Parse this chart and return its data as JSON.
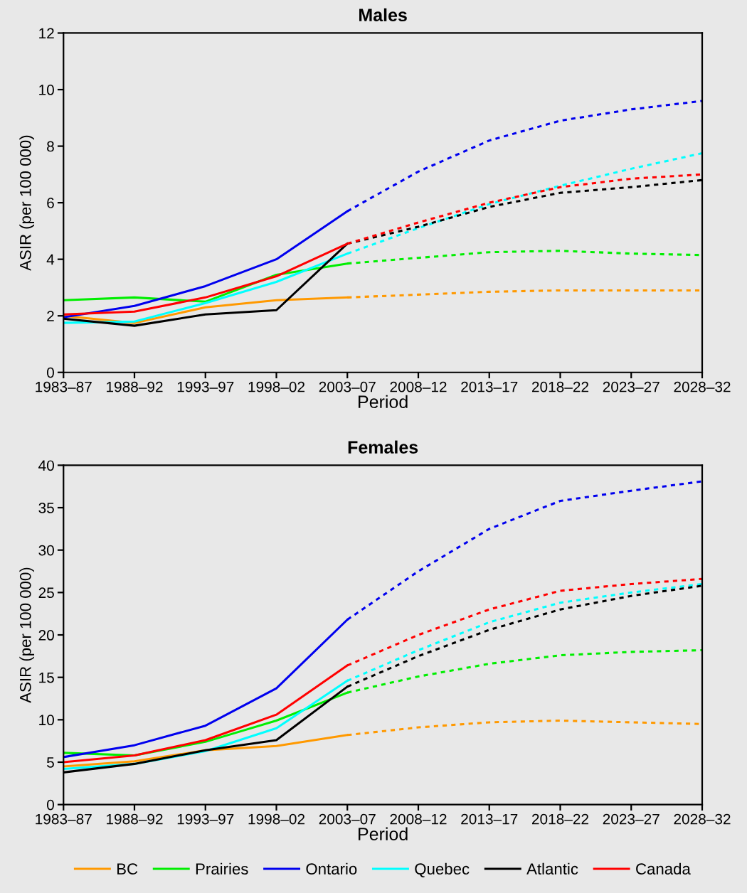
{
  "chart_data": [
    {
      "type": "line",
      "title": "Males",
      "xlabel": "Period",
      "ylabel": "ASIR (per 100 000)",
      "categories": [
        "1983–87",
        "1988–92",
        "1993–97",
        "1998–02",
        "2003–07",
        "2008–12",
        "2013–17",
        "2018–22",
        "2023–27",
        "2028–32"
      ],
      "ylim": [
        0,
        12
      ],
      "yticks": [
        0,
        2,
        4,
        6,
        8,
        10,
        12
      ],
      "grid": false,
      "legend": false,
      "series": [
        {
          "color": "#ff9900",
          "line_style": "solid",
          "values": [
            2.0,
            1.75,
            2.3,
            2.55,
            2.65,
            null,
            null,
            null,
            null,
            null
          ]
        },
        {
          "color": "#00ee00",
          "line_style": "solid",
          "values": [
            2.55,
            2.65,
            2.5,
            3.45,
            3.85,
            null,
            null,
            null,
            null,
            null
          ]
        },
        {
          "color": "#0000ee",
          "line_style": "solid",
          "values": [
            1.95,
            2.35,
            3.05,
            4.0,
            5.7,
            null,
            null,
            null,
            null,
            null
          ]
        },
        {
          "color": "#00ffff",
          "line_style": "solid",
          "values": [
            1.75,
            1.8,
            2.45,
            3.2,
            4.2,
            null,
            null,
            null,
            null,
            null
          ]
        },
        {
          "color": "#000000",
          "line_style": "solid",
          "values": [
            1.9,
            1.65,
            2.05,
            2.2,
            4.55,
            null,
            null,
            null,
            null,
            null
          ]
        },
        {
          "color": "#ff0000",
          "line_style": "solid",
          "values": [
            2.05,
            2.15,
            2.65,
            3.4,
            4.55,
            null,
            null,
            null,
            null,
            null
          ]
        },
        {
          "color": "#ff9900",
          "line_style": "dashed",
          "values": [
            null,
            null,
            null,
            null,
            2.65,
            2.75,
            2.85,
            2.9,
            2.9,
            2.9
          ]
        },
        {
          "color": "#00ee00",
          "line_style": "dashed",
          "values": [
            null,
            null,
            null,
            null,
            3.85,
            4.05,
            4.25,
            4.3,
            4.2,
            4.15
          ]
        },
        {
          "color": "#0000ee",
          "line_style": "dashed",
          "values": [
            null,
            null,
            null,
            null,
            5.7,
            7.1,
            8.2,
            8.9,
            9.3,
            9.6
          ]
        },
        {
          "color": "#00ffff",
          "line_style": "dashed",
          "values": [
            null,
            null,
            null,
            null,
            4.2,
            5.1,
            5.95,
            6.6,
            7.2,
            7.75
          ]
        },
        {
          "color": "#000000",
          "line_style": "dashed",
          "values": [
            null,
            null,
            null,
            null,
            4.55,
            5.15,
            5.85,
            6.35,
            6.55,
            6.8
          ]
        },
        {
          "color": "#ff0000",
          "line_style": "dashed",
          "values": [
            null,
            null,
            null,
            null,
            4.55,
            5.3,
            6.0,
            6.55,
            6.85,
            7.0
          ]
        }
      ]
    },
    {
      "type": "line",
      "title": "Females",
      "xlabel": "Period",
      "ylabel": "ASIR (per 100 000)",
      "categories": [
        "1983–87",
        "1988–92",
        "1993–97",
        "1998–02",
        "2003–07",
        "2008–12",
        "2013–17",
        "2018–22",
        "2023–27",
        "2028–32"
      ],
      "ylim": [
        0,
        40
      ],
      "yticks": [
        0,
        5,
        10,
        15,
        20,
        25,
        30,
        35,
        40
      ],
      "grid": false,
      "legend": "bottom",
      "series": [
        {
          "name": "BC",
          "color": "#ff9900",
          "line_style": "solid",
          "values": [
            4.5,
            5.1,
            6.4,
            6.9,
            8.2,
            null,
            null,
            null,
            null,
            null
          ]
        },
        {
          "name": "Prairies",
          "color": "#00ee00",
          "line_style": "solid",
          "values": [
            6.1,
            5.8,
            7.4,
            9.9,
            13.2,
            null,
            null,
            null,
            null,
            null
          ]
        },
        {
          "name": "Ontario",
          "color": "#0000ee",
          "line_style": "solid",
          "values": [
            5.6,
            7.0,
            9.3,
            13.7,
            21.8,
            null,
            null,
            null,
            null,
            null
          ]
        },
        {
          "name": "Quebec",
          "color": "#00ffff",
          "line_style": "solid",
          "values": [
            4.2,
            4.8,
            6.3,
            9.0,
            14.6,
            null,
            null,
            null,
            null,
            null
          ]
        },
        {
          "name": "Atlantic",
          "color": "#000000",
          "line_style": "solid",
          "values": [
            3.8,
            4.8,
            6.4,
            7.6,
            13.9,
            null,
            null,
            null,
            null,
            null
          ]
        },
        {
          "name": "Canada",
          "color": "#ff0000",
          "line_style": "solid",
          "values": [
            5.0,
            5.8,
            7.6,
            10.6,
            16.4,
            null,
            null,
            null,
            null,
            null
          ]
        },
        {
          "color": "#ff9900",
          "line_style": "dashed",
          "values": [
            null,
            null,
            null,
            null,
            8.2,
            9.1,
            9.7,
            9.9,
            9.7,
            9.5
          ]
        },
        {
          "color": "#00ee00",
          "line_style": "dashed",
          "values": [
            null,
            null,
            null,
            null,
            13.2,
            15.1,
            16.6,
            17.6,
            18.0,
            18.2
          ]
        },
        {
          "color": "#0000ee",
          "line_style": "dashed",
          "values": [
            null,
            null,
            null,
            null,
            21.8,
            27.5,
            32.5,
            35.8,
            37.0,
            38.1
          ]
        },
        {
          "color": "#00ffff",
          "line_style": "dashed",
          "values": [
            null,
            null,
            null,
            null,
            14.6,
            18.2,
            21.5,
            23.8,
            25.0,
            26.0
          ]
        },
        {
          "color": "#000000",
          "line_style": "dashed",
          "values": [
            null,
            null,
            null,
            null,
            13.9,
            17.5,
            20.6,
            23.0,
            24.6,
            25.8
          ]
        },
        {
          "color": "#ff0000",
          "line_style": "dashed",
          "values": [
            null,
            null,
            null,
            null,
            16.4,
            20.0,
            23.0,
            25.2,
            26.0,
            26.6
          ]
        }
      ]
    }
  ]
}
